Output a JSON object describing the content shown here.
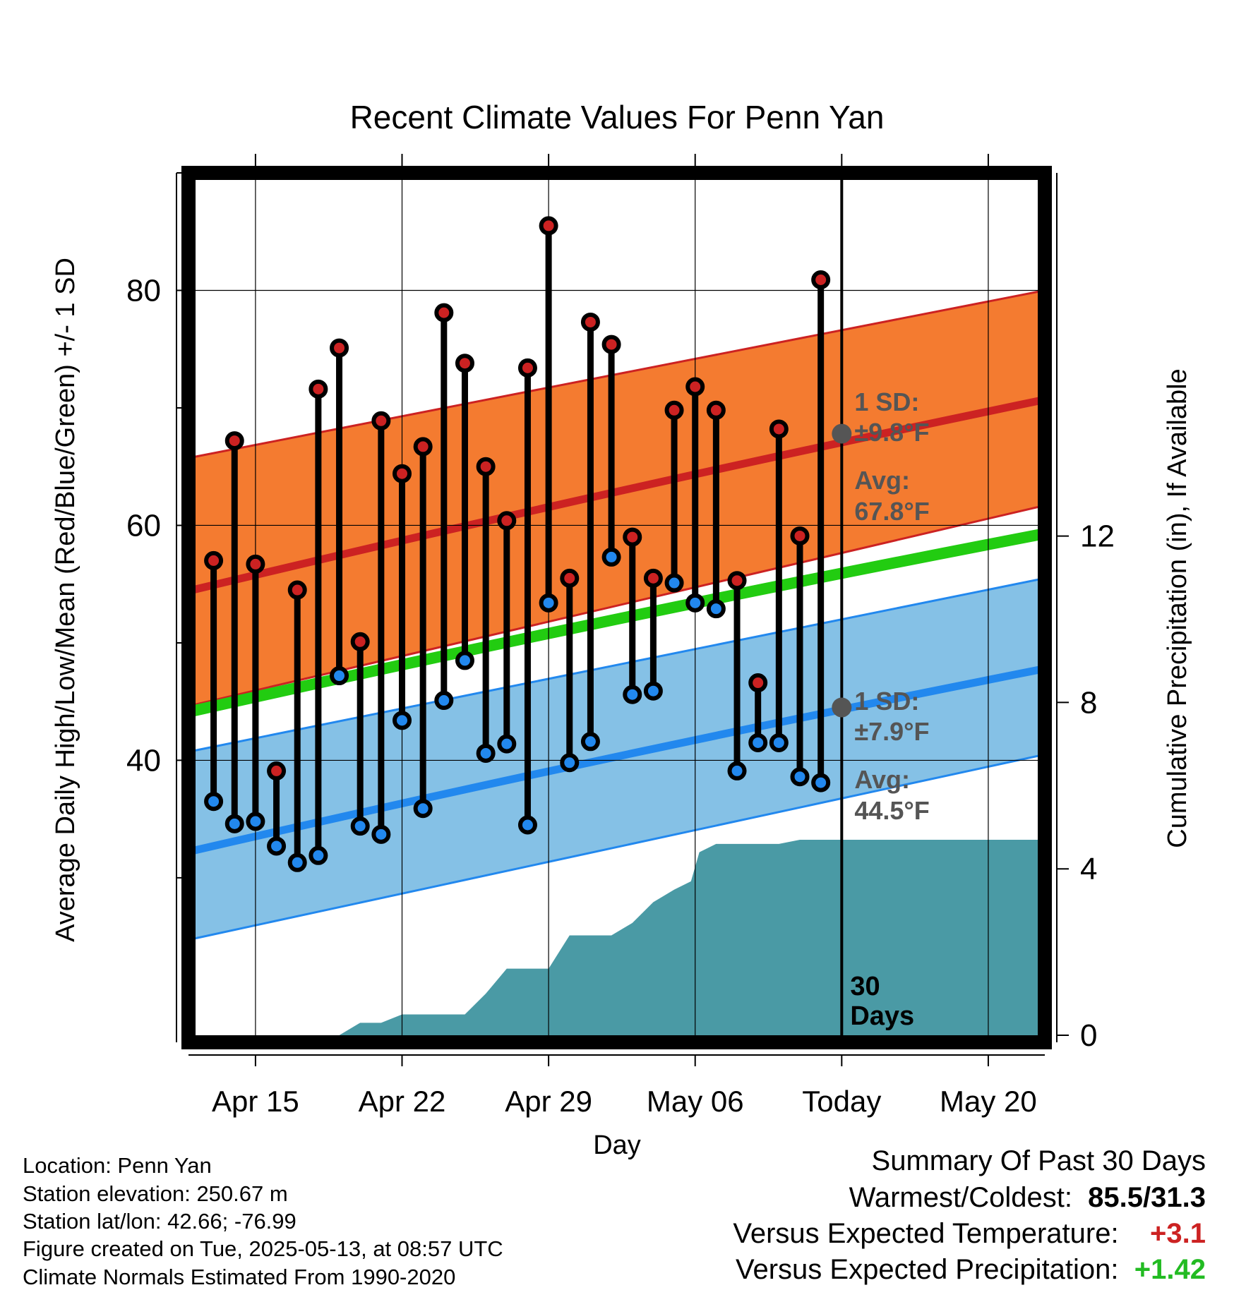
{
  "chart_data": {
    "type": "line",
    "title": "Recent Climate Values For Penn Yan",
    "xlabel": "Day",
    "ylabel": "Average Daily High/Low/Mean (Red/Blue/Green) +/- 1 SD",
    "y2label": "Cumulative Precipitation (in), If Available",
    "x_ticks": [
      {
        "day": 4,
        "label": "Apr 15"
      },
      {
        "day": 11,
        "label": "Apr 22"
      },
      {
        "day": 18,
        "label": "Apr 29"
      },
      {
        "day": 25,
        "label": "May 06"
      },
      {
        "day": 32,
        "label": "Today"
      },
      {
        "day": 39,
        "label": "May 20"
      }
    ],
    "xlim": [
      0.8,
      41.7
    ],
    "ylim": [
      16,
      90
    ],
    "y_ticks": [
      40,
      60,
      80
    ],
    "y_minor_ticks": [
      30,
      50,
      70,
      90
    ],
    "y2lim": [
      0,
      20.9
    ],
    "y2_ticks": [
      0,
      4,
      8,
      12
    ],
    "grid": true,
    "today_day": 32,
    "window_label": "30\nDays",
    "normals": {
      "start_day": 1,
      "end_day": 41.7,
      "avg_high": [
        54.5,
        70.7
      ],
      "high_sd_lower": [
        44.7,
        61.7
      ],
      "high_sd_upper": [
        65.8,
        80.0
      ],
      "avg_mean": [
        44.2,
        59.3
      ],
      "avg_low": [
        32.3,
        47.8
      ],
      "low_sd_lower": [
        24.8,
        40.5
      ],
      "low_sd_upper": [
        40.8,
        55.5
      ]
    },
    "annotations": {
      "high": {
        "sd": "1 SD:",
        "sd_value": "±9.8°F",
        "avg": "Avg:",
        "avg_value": "67.8°F",
        "avg_num": 67.8
      },
      "low": {
        "sd": "1 SD:",
        "sd_value": "±7.9°F",
        "avg": "Avg:",
        "avg_value": "44.5°F",
        "avg_num": 44.5
      }
    },
    "series": [
      {
        "name": "High",
        "color": "#cc2222",
        "x": [
          2,
          3,
          4,
          5,
          6,
          7,
          8,
          9,
          10,
          11,
          12,
          13,
          14,
          15,
          16,
          17,
          18,
          19,
          20,
          21,
          22,
          23,
          24,
          25,
          26,
          27,
          28,
          29,
          30,
          31
        ],
        "values": [
          57,
          67.2,
          56.7,
          39.1,
          54.5,
          71.6,
          75.1,
          50.1,
          68.9,
          64.4,
          66.7,
          78.1,
          73.8,
          65,
          60.4,
          73.4,
          85.5,
          55.5,
          77.3,
          75.4,
          59,
          55.5,
          69.8,
          71.8,
          69.8,
          55.3,
          46.6,
          68.2,
          59.1,
          80.9
        ]
      },
      {
        "name": "Low",
        "color": "#2288ee",
        "x": [
          2,
          3,
          4,
          5,
          6,
          7,
          8,
          9,
          10,
          11,
          12,
          13,
          14,
          15,
          16,
          17,
          18,
          19,
          20,
          21,
          22,
          23,
          24,
          25,
          26,
          27,
          28,
          29,
          30,
          31
        ],
        "values": [
          36.5,
          34.6,
          34.8,
          32.7,
          31.3,
          31.9,
          47.2,
          34.4,
          33.7,
          43.4,
          35.9,
          45.1,
          48.5,
          40.6,
          41.4,
          34.5,
          53.4,
          39.8,
          41.6,
          57.3,
          45.6,
          45.9,
          55.1,
          53.4,
          52.9,
          39.1,
          41.5,
          41.5,
          38.6,
          38.1
        ]
      },
      {
        "name": "Precip",
        "color": "#4a9aa5",
        "x": [
          5,
          6,
          7,
          8,
          9,
          10,
          11,
          12,
          13,
          14,
          15,
          16,
          17,
          18,
          19,
          20,
          21,
          22,
          23,
          24,
          24.8,
          25.2,
          26,
          27,
          28,
          29,
          30,
          31,
          32,
          33,
          34,
          35,
          36,
          37,
          38,
          39,
          40,
          41,
          41.7
        ],
        "values": [
          0,
          0,
          0,
          0,
          0.3,
          0.3,
          0.5,
          0.5,
          0.5,
          0.5,
          1,
          1.6,
          1.6,
          1.6,
          2.4,
          2.4,
          2.4,
          2.7,
          3.2,
          3.5,
          3.7,
          4.4,
          4.6,
          4.6,
          4.6,
          4.6,
          4.7,
          4.7,
          4.7,
          4.7,
          4.7,
          4.7,
          4.7,
          4.7,
          4.7,
          4.7,
          4.7,
          4.7,
          4.7
        ]
      }
    ]
  },
  "info": {
    "location": "Location: Penn Yan",
    "elevation": "Station elevation: 250.67 m",
    "latlon": "Station lat/lon: 42.66; -76.99",
    "created": "Figure created on Tue, 2025-05-13, at 08:57 UTC",
    "normals": "Climate Normals Estimated From 1990-2020"
  },
  "summary": {
    "title": "Summary Of Past 30 Days",
    "warm_cold_label": "Warmest/Coldest:",
    "warm_cold_value": "85.5/31.3",
    "temp_label": "Versus Expected Temperature:",
    "temp_value": "+3.1",
    "temp_color": "#cc2222",
    "precip_label": "Versus Expected Precipitation:",
    "precip_value": "+1.42",
    "precip_color": "#22bb22"
  }
}
